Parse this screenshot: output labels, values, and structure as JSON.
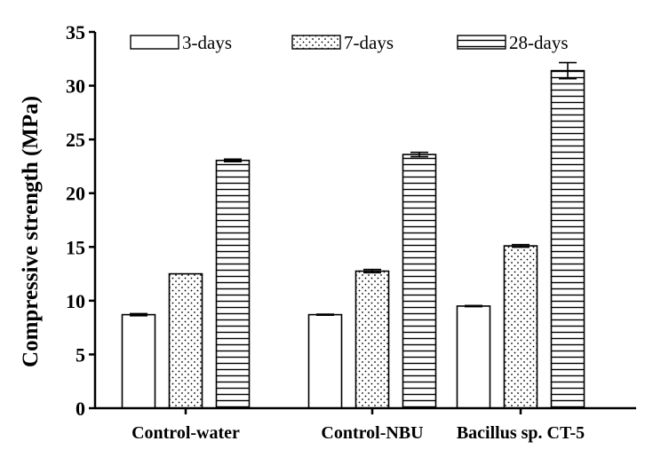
{
  "chart_data": {
    "type": "bar",
    "title": "",
    "xlabel": "",
    "ylabel": "Compressive strength (MPa)",
    "ylim": [
      0,
      35
    ],
    "yticks": [
      0,
      5,
      10,
      15,
      20,
      25,
      30,
      35
    ],
    "grid": false,
    "legend_position": "top",
    "categories": [
      "Control-water",
      "Control-NBU",
      "Bacillus sp. CT-5"
    ],
    "series": [
      {
        "name": "3-days",
        "pattern": "none",
        "values": [
          8.7,
          8.7,
          9.5
        ],
        "errors": [
          0.1,
          0.05,
          0.05
        ]
      },
      {
        "name": "7-days",
        "pattern": "dots",
        "values": [
          12.5,
          12.75,
          15.1
        ],
        "errors": [
          0.0,
          0.15,
          0.12
        ]
      },
      {
        "name": "28-days",
        "pattern": "horizontal-lines",
        "values": [
          23.05,
          23.6,
          31.4
        ],
        "errors": [
          0.12,
          0.2,
          0.75
        ]
      }
    ]
  }
}
